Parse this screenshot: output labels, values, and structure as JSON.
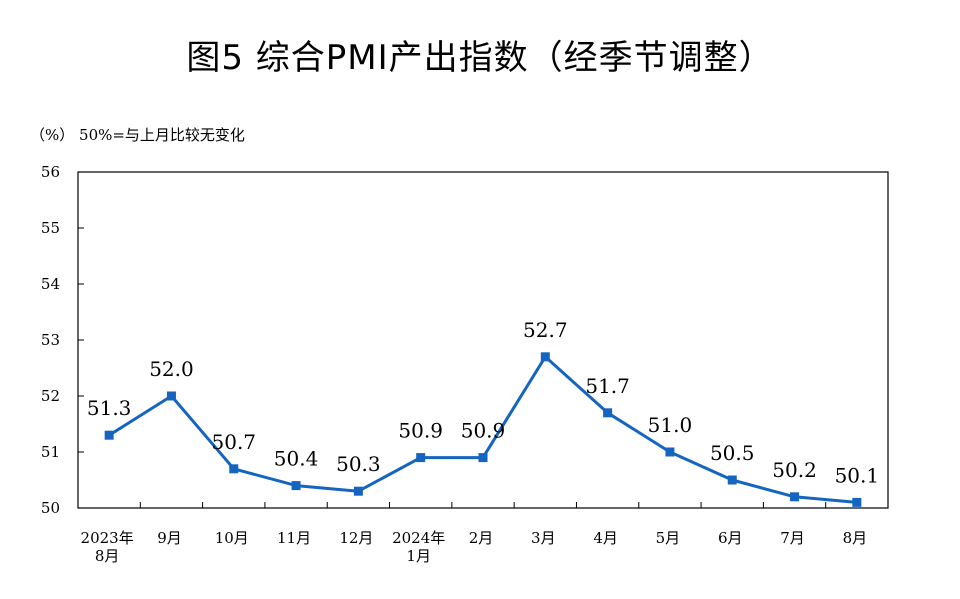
{
  "title": "图5  综合PMI产出指数（经季节调整）",
  "unit_note": "（%）  50%=与上月比较无变化",
  "colors": {
    "series": "#1565C0",
    "axis": "#000000"
  },
  "chart_data": {
    "type": "line",
    "title": "图5  综合PMI产出指数（经季节调整）",
    "categories": [
      [
        "2023年",
        "8月"
      ],
      [
        "9月"
      ],
      [
        "10月"
      ],
      [
        "11月"
      ],
      [
        "12月"
      ],
      [
        "2024年",
        "1月"
      ],
      [
        "2月"
      ],
      [
        "3月"
      ],
      [
        "4月"
      ],
      [
        "5月"
      ],
      [
        "6月"
      ],
      [
        "7月"
      ],
      [
        "8月"
      ]
    ],
    "values": [
      51.3,
      52.0,
      50.7,
      50.4,
      50.3,
      50.9,
      50.9,
      52.7,
      51.7,
      51.0,
      50.5,
      50.2,
      50.1
    ],
    "data_labels": [
      "51.3",
      "52.0",
      "50.7",
      "50.4",
      "50.3",
      "50.9",
      "50.9",
      "52.7",
      "51.7",
      "51.0",
      "50.5",
      "50.2",
      "50.1"
    ],
    "ylim": [
      50,
      56
    ],
    "yticks": [
      50,
      51,
      52,
      53,
      54,
      55,
      56
    ],
    "grid": false,
    "marker": "square",
    "legend": "none"
  }
}
